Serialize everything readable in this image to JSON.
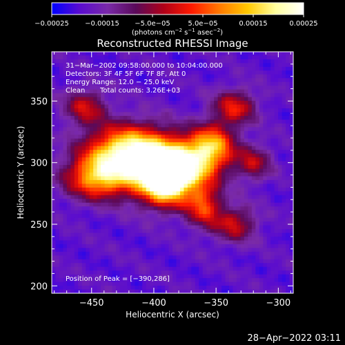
{
  "chart_data": {
    "type": "heatmap",
    "title": "Reconstructed RHESSI Image",
    "xlabel": "Heliocentric X (arcsec)",
    "ylabel": "Heliocentric Y (arcsec)",
    "xlim": [
      -482,
      -288
    ],
    "ylim": [
      194,
      390
    ],
    "x_ticks": [
      {
        "value": -450,
        "label": "−450"
      },
      {
        "value": -400,
        "label": "−400"
      },
      {
        "value": -350,
        "label": "−350"
      },
      {
        "value": -300,
        "label": "−300"
      }
    ],
    "y_ticks": [
      {
        "value": 200,
        "label": "200"
      },
      {
        "value": 250,
        "label": "250"
      },
      {
        "value": 300,
        "label": "300"
      },
      {
        "value": 350,
        "label": "350"
      }
    ],
    "colorbar": {
      "range": [
        -0.00025,
        0.00025
      ],
      "tick_labels": [
        "−0.00025",
        "−0.00015",
        "−5.0e−05",
        "5.0e−05",
        "0.00015",
        "0.00025"
      ],
      "tick_values": [
        -0.00025,
        -0.00015,
        -5e-05,
        5e-05,
        0.00015,
        0.00025
      ],
      "unit_label": {
        "open": "(photons cm",
        "exp1": "−2",
        "mid1": " s",
        "exp2": "−1",
        "mid2": " asec",
        "exp3": "−2",
        "close": ")"
      },
      "colors": [
        "#0000ff",
        "#5a0ccf",
        "#7a2aa8",
        "#5a0a5a",
        "#b00018",
        "#ff1a00",
        "#ff7a00",
        "#ffc800",
        "#ffffa0",
        "#ffffff"
      ]
    },
    "annotations": {
      "time_range": "31−Mar−2002 09:58:00.000 to 10:04:00.000",
      "detectors": "Detectors: 3F 4F 5F 6F 7F 8F, Att 0",
      "energy": "Energy Range: 12.0 − 25.0 keV",
      "method": "Clean",
      "counts": "Total counts: 3.26E+03",
      "peak": "Position of Peak = [−390,286]"
    },
    "sources": [
      {
        "x": -445,
        "y": 288,
        "sx": 18,
        "sy": 12,
        "amp": 0.7
      },
      {
        "x": -425,
        "y": 310,
        "sx": 22,
        "sy": 14,
        "amp": 0.7
      },
      {
        "x": -405,
        "y": 300,
        "sx": 20,
        "sy": 18,
        "amp": 0.55
      },
      {
        "x": -390,
        "y": 286,
        "sx": 14,
        "sy": 14,
        "amp": 1.0
      },
      {
        "x": -370,
        "y": 300,
        "sx": 18,
        "sy": 14,
        "amp": 0.7
      },
      {
        "x": -352,
        "y": 315,
        "sx": 12,
        "sy": 12,
        "amp": 0.55
      },
      {
        "x": -335,
        "y": 345,
        "sx": 12,
        "sy": 10,
        "amp": 0.45
      },
      {
        "x": -455,
        "y": 345,
        "sx": 12,
        "sy": 10,
        "amp": 0.4
      },
      {
        "x": -360,
        "y": 265,
        "sx": 10,
        "sy": 12,
        "amp": 0.5
      },
      {
        "x": -335,
        "y": 250,
        "sx": 12,
        "sy": 10,
        "amp": 0.4
      },
      {
        "x": -320,
        "y": 300,
        "sx": 10,
        "sy": 10,
        "amp": 0.35
      }
    ]
  },
  "timestamp": "28−Apr−2022 03:11"
}
